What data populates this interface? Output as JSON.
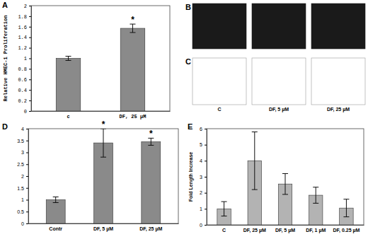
{
  "chart_data": [
    {
      "type": "bar",
      "title": "A",
      "y_label": "Relative HMEC-1 Proliferation",
      "categories": [
        "c",
        "DF, 25 µM"
      ],
      "values": [
        1.0,
        1.57
      ],
      "errors": [
        0.04,
        0.08
      ],
      "annotations": [
        null,
        "*"
      ],
      "color": "#8a8a8a",
      "ylim": [
        0,
        2
      ],
      "yticks": [
        0,
        0.2,
        0.4,
        0.6,
        0.8,
        1,
        1.2,
        1.4,
        1.6,
        1.8,
        2
      ]
    },
    {
      "type": "bar",
      "title": "D",
      "categories": [
        "Contr",
        "DF, 5 µM",
        "DF, 25 µM"
      ],
      "values": [
        1.0,
        3.4,
        3.45
      ],
      "errors": [
        0.12,
        0.6,
        0.15
      ],
      "annotations": [
        null,
        "*",
        "*"
      ],
      "color": "#8a8a8a",
      "ylim": [
        0,
        4
      ],
      "yticks": [
        0,
        0.5,
        1,
        1.5,
        2,
        2.5,
        3,
        3.5,
        4
      ]
    },
    {
      "type": "bar",
      "title": "E",
      "y_label": "Fold Length Increase",
      "categories": [
        "C",
        "DF, 25 µM",
        "DF, 5 µM",
        "DF, 1 µM",
        "DF, 0.25 µM"
      ],
      "values": [
        1.0,
        4.0,
        2.55,
        1.85,
        1.05
      ],
      "errors": [
        0.45,
        1.8,
        0.65,
        0.5,
        0.55
      ],
      "color": "#b3b3b3",
      "ylim": [
        0,
        6
      ],
      "yticks": [
        0,
        1,
        2,
        3,
        4,
        5,
        6
      ]
    }
  ],
  "images": [
    {
      "title": "B"
    },
    {
      "title": "C",
      "labels": [
        "C",
        "DF, 5 µM",
        "DF, 25 µM"
      ]
    }
  ]
}
